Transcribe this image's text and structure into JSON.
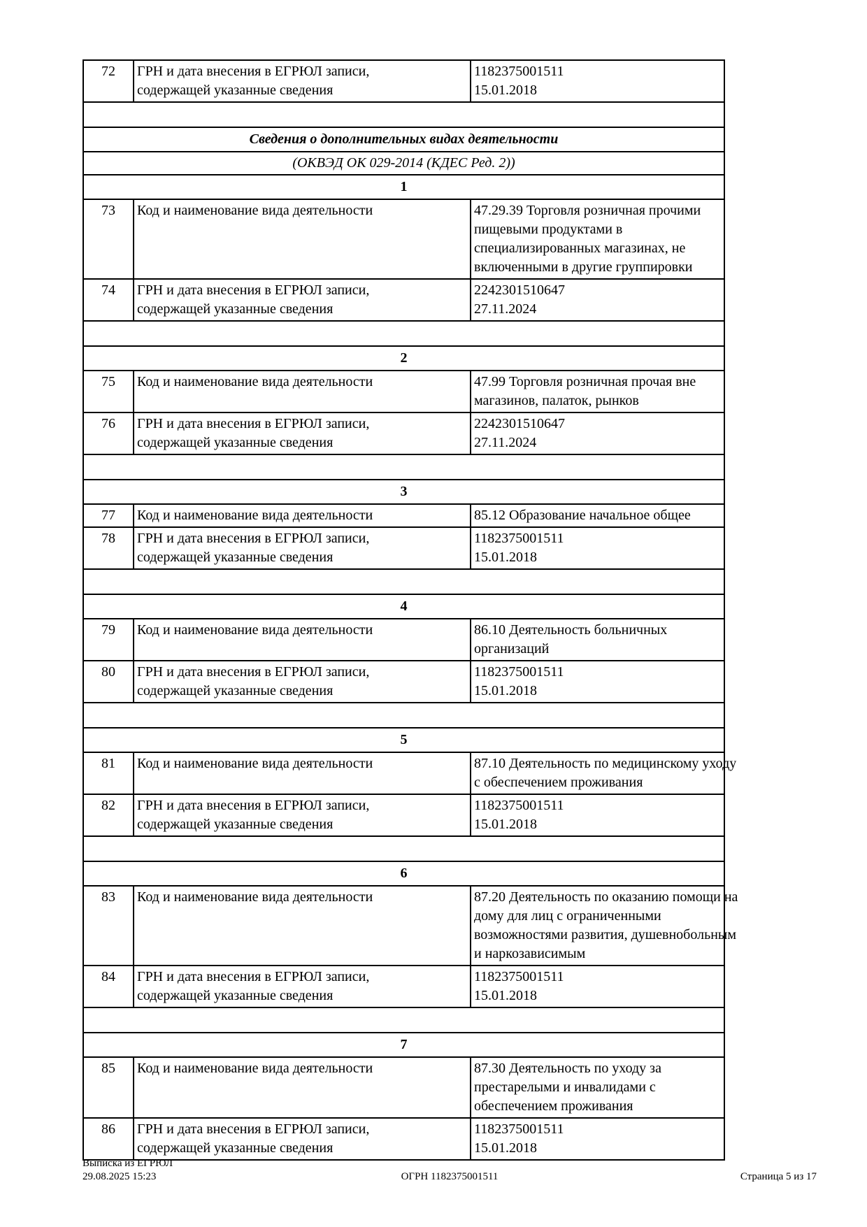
{
  "table": {
    "blocks": [
      {
        "type": "row",
        "num": "72",
        "label": [
          "ГРН и дата внесения в ЕГРЮЛ записи,",
          "содержащей указанные сведения"
        ],
        "value": [
          "1182375001511",
          "15.01.2018"
        ]
      },
      {
        "type": "spacer"
      },
      {
        "type": "title",
        "text": "Сведения о дополнительных видах деятельности"
      },
      {
        "type": "subtitle",
        "text": "(ОКВЭД ОК 029-2014 (КДЕС Ред. 2))"
      },
      {
        "type": "section",
        "text": "1"
      },
      {
        "type": "row",
        "num": "73",
        "label": [
          "Код и наименование вида деятельности"
        ],
        "value": [
          "47.29.39 Торговля розничная прочими",
          "пищевыми продуктами в",
          "специализированных магазинах, не",
          "включенными в другие группировки"
        ]
      },
      {
        "type": "row",
        "num": "74",
        "label": [
          "ГРН и дата внесения в ЕГРЮЛ записи,",
          "содержащей указанные сведения"
        ],
        "value": [
          "2242301510647",
          "27.11.2024"
        ]
      },
      {
        "type": "spacer"
      },
      {
        "type": "section",
        "text": "2"
      },
      {
        "type": "row",
        "num": "75",
        "label": [
          "Код и наименование вида деятельности"
        ],
        "value": [
          "47.99 Торговля розничная прочая вне",
          "магазинов, палаток, рынков"
        ]
      },
      {
        "type": "row",
        "num": "76",
        "label": [
          "ГРН и дата внесения в ЕГРЮЛ записи,",
          "содержащей указанные сведения"
        ],
        "value": [
          "2242301510647",
          "27.11.2024"
        ]
      },
      {
        "type": "spacer"
      },
      {
        "type": "section",
        "text": "3"
      },
      {
        "type": "row",
        "num": "77",
        "label": [
          "Код и наименование вида деятельности"
        ],
        "value": [
          "85.12 Образование начальное общее"
        ]
      },
      {
        "type": "row",
        "num": "78",
        "label": [
          "ГРН и дата внесения в ЕГРЮЛ записи,",
          "содержащей указанные сведения"
        ],
        "value": [
          "1182375001511",
          "15.01.2018"
        ]
      },
      {
        "type": "spacer"
      },
      {
        "type": "section",
        "text": "4"
      },
      {
        "type": "row",
        "num": "79",
        "label": [
          "Код и наименование вида деятельности"
        ],
        "value": [
          "86.10 Деятельность больничных",
          "организаций"
        ]
      },
      {
        "type": "row",
        "num": "80",
        "label": [
          "ГРН и дата внесения в ЕГРЮЛ записи,",
          "содержащей указанные сведения"
        ],
        "value": [
          "1182375001511",
          "15.01.2018"
        ]
      },
      {
        "type": "spacer"
      },
      {
        "type": "section",
        "text": "5"
      },
      {
        "type": "row",
        "num": "81",
        "label": [
          "Код и наименование вида деятельности"
        ],
        "value": [
          "87.10 Деятельность по медицинскому уходу",
          "с обеспечением проживания"
        ]
      },
      {
        "type": "row",
        "num": "82",
        "label": [
          "ГРН и дата внесения в ЕГРЮЛ записи,",
          "содержащей указанные сведения"
        ],
        "value": [
          "1182375001511",
          "15.01.2018"
        ]
      },
      {
        "type": "spacer"
      },
      {
        "type": "section",
        "text": "6"
      },
      {
        "type": "row",
        "num": "83",
        "label": [
          "Код и наименование вида деятельности"
        ],
        "value": [
          "87.20 Деятельность по оказанию помощи на",
          "дому для лиц с ограниченными",
          "возможностями развития, душевнобольным",
          "и наркозависимым"
        ]
      },
      {
        "type": "row",
        "num": "84",
        "label": [
          "ГРН и дата внесения в ЕГРЮЛ записи,",
          "содержащей указанные сведения"
        ],
        "value": [
          "1182375001511",
          "15.01.2018"
        ]
      },
      {
        "type": "spacer"
      },
      {
        "type": "section",
        "text": "7"
      },
      {
        "type": "row",
        "num": "85",
        "label": [
          "Код и наименование вида деятельности"
        ],
        "value": [
          "87.30 Деятельность по уходу за",
          "престарелыми и инвалидами с",
          "обеспечением проживания"
        ]
      },
      {
        "type": "row",
        "num": "86",
        "label": [
          "ГРН и дата внесения в ЕГРЮЛ записи,",
          "содержащей указанные сведения"
        ],
        "value": [
          "1182375001511",
          "15.01.2018"
        ]
      }
    ]
  },
  "footer": {
    "doc_title": "Выписка из ЕГРЮЛ",
    "datetime": "29.08.2025 15:23",
    "ogrn": "ОГРН 1182375001511",
    "page_info": "Страница 5 из 17"
  }
}
